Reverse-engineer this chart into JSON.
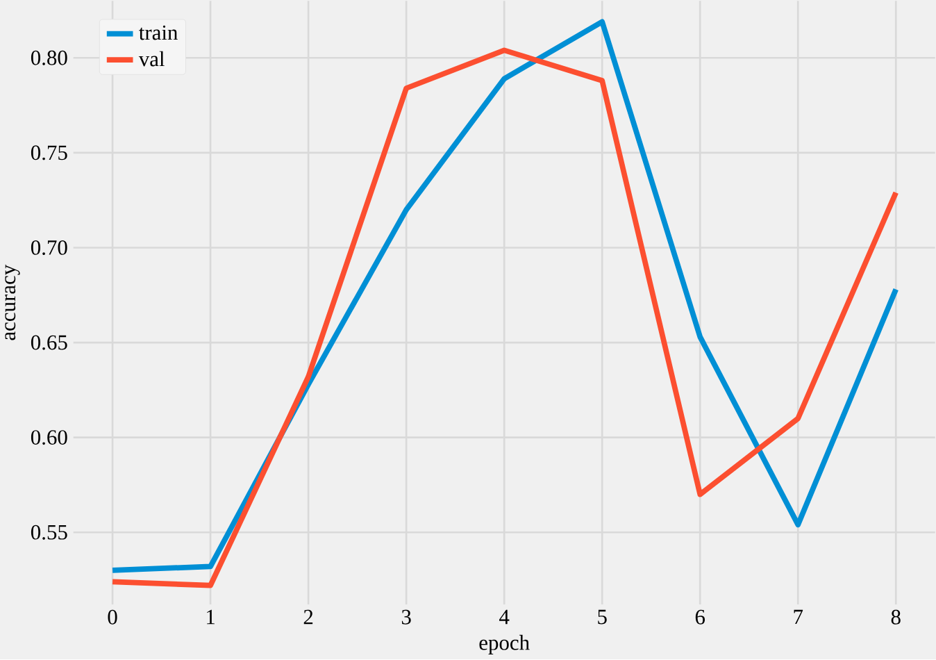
{
  "chart_data": {
    "type": "line",
    "xlabel": "epoch",
    "ylabel": "accuracy",
    "x": [
      0,
      1,
      2,
      3,
      4,
      5,
      6,
      7,
      8
    ],
    "series": [
      {
        "name": "train",
        "color": "#008fd5",
        "values": [
          0.53,
          0.532,
          0.628,
          0.72,
          0.789,
          0.819,
          0.653,
          0.554,
          0.678
        ]
      },
      {
        "name": "val",
        "color": "#fc4f30",
        "values": [
          0.524,
          0.522,
          0.632,
          0.784,
          0.804,
          0.788,
          0.57,
          0.61,
          0.729
        ]
      }
    ],
    "xlim": [
      -0.4,
      8.4
    ],
    "ylim": [
      0.512,
      0.83
    ],
    "xticks": [
      0,
      1,
      2,
      3,
      4,
      5,
      6,
      7,
      8
    ],
    "yticks": [
      {
        "value": 0.55,
        "label": "0.55"
      },
      {
        "value": 0.6,
        "label": "0.60"
      },
      {
        "value": 0.65,
        "label": "0.65"
      },
      {
        "value": 0.7,
        "label": "0.70"
      },
      {
        "value": 0.75,
        "label": "0.75"
      },
      {
        "value": 0.8,
        "label": "0.80"
      }
    ],
    "grid": true,
    "legend": "top left",
    "marker": "none",
    "line_style": "solid"
  }
}
